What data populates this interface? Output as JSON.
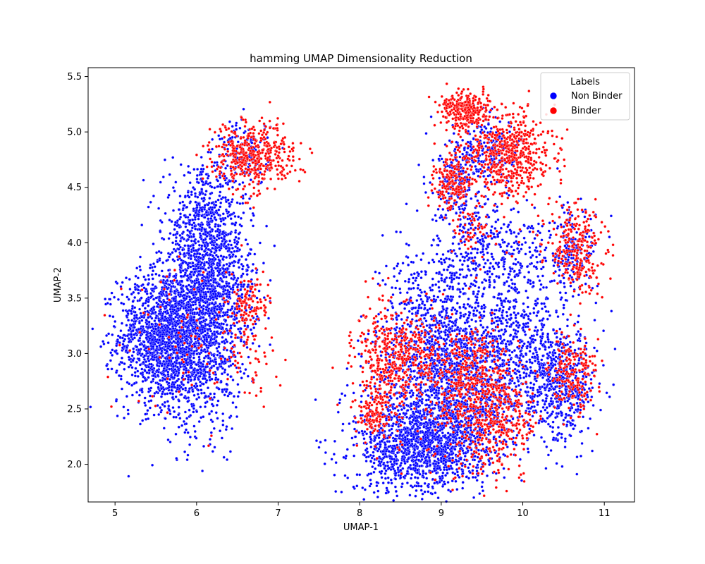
{
  "chart_data": {
    "type": "scatter",
    "title": "hamming UMAP Dimensionality Reduction",
    "xlabel": "UMAP-1",
    "ylabel": "UMAP-2",
    "xlim": [
      4.67,
      11.37
    ],
    "ylim": [
      1.66,
      5.58
    ],
    "xticks": [
      "5",
      "6",
      "7",
      "8",
      "9",
      "10",
      "11"
    ],
    "yticks": [
      "2.0",
      "2.5",
      "3.0",
      "3.5",
      "4.0",
      "4.5",
      "5.0",
      "5.5"
    ],
    "grid": false,
    "legend": {
      "title": "Labels",
      "placement": "top-right",
      "entries": [
        "Non Binder",
        "Binder"
      ]
    },
    "series": [
      {
        "name": "Non Binder",
        "color": "#0000ff",
        "clusters": [
          {
            "cx": 5.6,
            "cy": 3.15,
            "sx": 0.28,
            "sy": 0.3,
            "n": 1500
          },
          {
            "cx": 6.05,
            "cy": 3.1,
            "sx": 0.25,
            "sy": 0.4,
            "n": 900
          },
          {
            "cx": 6.1,
            "cy": 4.1,
            "sx": 0.25,
            "sy": 0.28,
            "n": 700
          },
          {
            "cx": 6.25,
            "cy": 3.6,
            "sx": 0.25,
            "sy": 0.25,
            "n": 500
          },
          {
            "cx": 6.6,
            "cy": 4.8,
            "sx": 0.15,
            "sy": 0.15,
            "n": 150
          },
          {
            "cx": 8.75,
            "cy": 2.15,
            "sx": 0.4,
            "sy": 0.2,
            "n": 1200
          },
          {
            "cx": 9.1,
            "cy": 2.7,
            "sx": 0.45,
            "sy": 0.35,
            "n": 1400
          },
          {
            "cx": 9.0,
            "cy": 3.4,
            "sx": 0.35,
            "sy": 0.3,
            "n": 500
          },
          {
            "cx": 10.0,
            "cy": 3.0,
            "sx": 0.35,
            "sy": 0.35,
            "n": 600
          },
          {
            "cx": 10.5,
            "cy": 2.7,
            "sx": 0.2,
            "sy": 0.25,
            "n": 400
          },
          {
            "cx": 9.9,
            "cy": 3.8,
            "sx": 0.2,
            "sy": 0.25,
            "n": 200
          },
          {
            "cx": 10.6,
            "cy": 3.9,
            "sx": 0.15,
            "sy": 0.2,
            "n": 180
          },
          {
            "cx": 9.2,
            "cy": 4.5,
            "sx": 0.15,
            "sy": 0.2,
            "n": 180
          },
          {
            "cx": 9.6,
            "cy": 4.8,
            "sx": 0.2,
            "sy": 0.15,
            "n": 200
          },
          {
            "cx": 9.4,
            "cy": 4.1,
            "sx": 0.2,
            "sy": 0.2,
            "n": 150
          }
        ]
      },
      {
        "name": "Binder",
        "color": "#ff0000",
        "clusters": [
          {
            "cx": 6.7,
            "cy": 4.78,
            "sx": 0.25,
            "sy": 0.15,
            "n": 450
          },
          {
            "cx": 6.65,
            "cy": 3.45,
            "sx": 0.12,
            "sy": 0.12,
            "n": 120
          },
          {
            "cx": 6.6,
            "cy": 3.0,
            "sx": 0.2,
            "sy": 0.2,
            "n": 60
          },
          {
            "cx": 5.8,
            "cy": 3.1,
            "sx": 0.4,
            "sy": 0.4,
            "n": 70
          },
          {
            "cx": 9.3,
            "cy": 5.2,
            "sx": 0.15,
            "sy": 0.08,
            "n": 300
          },
          {
            "cx": 9.85,
            "cy": 4.8,
            "sx": 0.25,
            "sy": 0.2,
            "n": 550
          },
          {
            "cx": 9.15,
            "cy": 4.55,
            "sx": 0.12,
            "sy": 0.12,
            "n": 200
          },
          {
            "cx": 10.65,
            "cy": 3.95,
            "sx": 0.18,
            "sy": 0.2,
            "n": 260
          },
          {
            "cx": 8.3,
            "cy": 2.85,
            "sx": 0.18,
            "sy": 0.3,
            "n": 350
          },
          {
            "cx": 8.7,
            "cy": 3.0,
            "sx": 0.2,
            "sy": 0.2,
            "n": 200
          },
          {
            "cx": 9.5,
            "cy": 2.5,
            "sx": 0.3,
            "sy": 0.3,
            "n": 450
          },
          {
            "cx": 9.4,
            "cy": 2.85,
            "sx": 0.2,
            "sy": 0.2,
            "n": 200
          },
          {
            "cx": 10.6,
            "cy": 2.8,
            "sx": 0.15,
            "sy": 0.2,
            "n": 200
          },
          {
            "cx": 8.15,
            "cy": 2.4,
            "sx": 0.1,
            "sy": 0.08,
            "n": 80
          },
          {
            "cx": 9.8,
            "cy": 2.4,
            "sx": 0.2,
            "sy": 0.15,
            "n": 100
          },
          {
            "cx": 9.4,
            "cy": 4.1,
            "sx": 0.15,
            "sy": 0.15,
            "n": 60
          }
        ]
      }
    ]
  }
}
